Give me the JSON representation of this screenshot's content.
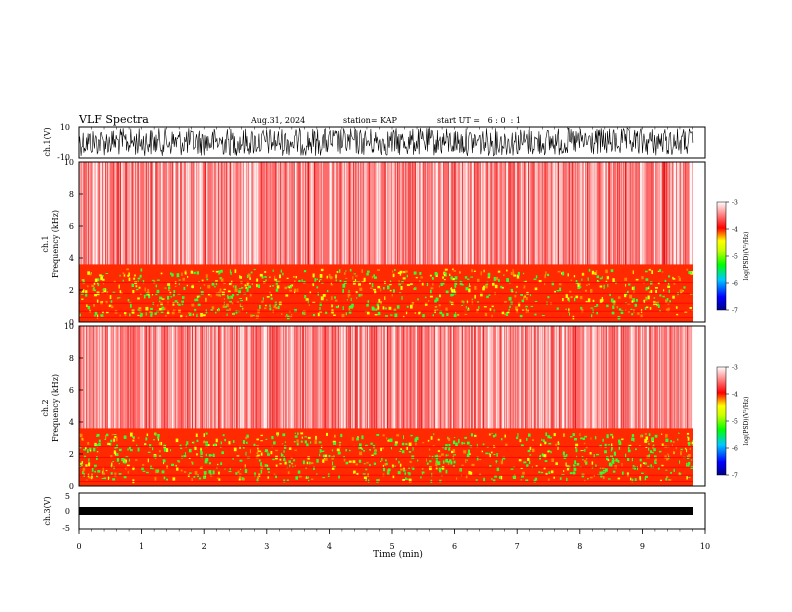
{
  "header": {
    "title": "VLF Spectra",
    "date": "Aug.31, 2024",
    "station": "station= KAP",
    "start_ut": "start UT =   6 : 0  : 1"
  },
  "chart_data": [
    {
      "type": "line",
      "name": "ch1-waveform",
      "ylabel": "ch.1(V)",
      "ylim": [
        -10,
        10
      ],
      "yticks": [
        "10",
        "-10"
      ],
      "xlim": [
        0,
        10
      ],
      "color": "#000000"
    },
    {
      "type": "heatmap",
      "name": "ch1-spectrogram",
      "ylabel": "ch.1\nFrequency (kHz)",
      "ylim": [
        0,
        10
      ],
      "yticks": [
        "0",
        "2",
        "4",
        "6",
        "8",
        "10"
      ],
      "xlim": [
        0,
        10
      ],
      "colorbar": {
        "label": "log(PSD)(V²/Hz)",
        "range": [
          -7,
          -3
        ],
        "ticks": [
          "-3",
          "-4",
          "-5",
          "-6",
          "-7"
        ]
      }
    },
    {
      "type": "heatmap",
      "name": "ch2-spectrogram",
      "ylabel": "ch.2\nFrequency (kHz)",
      "ylim": [
        0,
        10
      ],
      "yticks": [
        "0",
        "2",
        "4",
        "6",
        "8",
        "10"
      ],
      "xlim": [
        0,
        10
      ],
      "colorbar": {
        "label": "log(PSD)(V²/Hz)",
        "range": [
          -7,
          -3
        ],
        "ticks": [
          "-3",
          "-4",
          "-5",
          "-6",
          "-7"
        ]
      }
    },
    {
      "type": "line",
      "name": "ch3-waveform",
      "ylabel": "ch.3(V)",
      "ylim": [
        -5,
        5
      ],
      "yticks": [
        "5",
        "0",
        "-5"
      ],
      "xlim": [
        0,
        10
      ],
      "xlabel": "Time (min)",
      "xticks": [
        "0",
        "1",
        "2",
        "3",
        "4",
        "5",
        "6",
        "7",
        "8",
        "9",
        "10"
      ],
      "color": "#000000"
    }
  ]
}
